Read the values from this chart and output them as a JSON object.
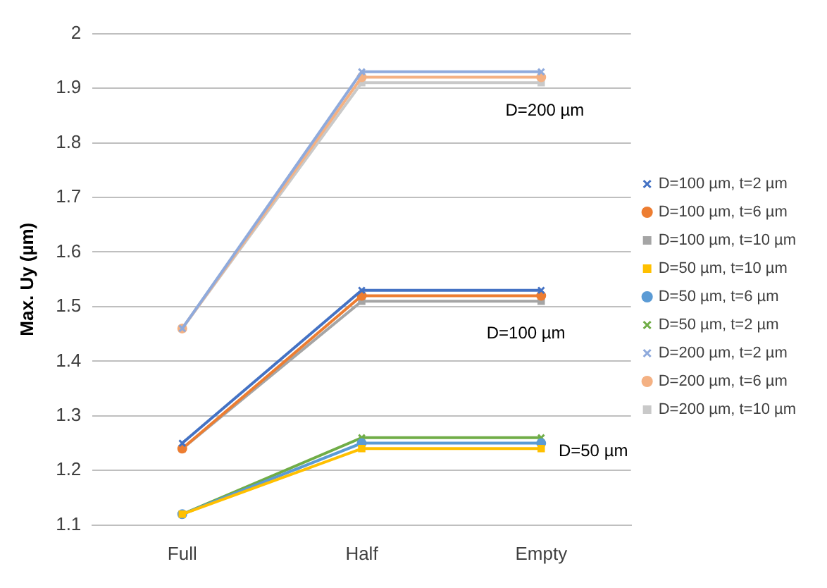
{
  "chart_data": {
    "type": "line",
    "ylabel": "Max. Uy (µm)",
    "categories": [
      "Full",
      "Half",
      "Empty"
    ],
    "ylim": [
      1.1,
      2
    ],
    "yticks": [
      1.1,
      1.2,
      1.3,
      1.4,
      1.5,
      1.6,
      1.7,
      1.8,
      1.9,
      2
    ],
    "grid": "y",
    "legend": "right",
    "line_style": "solid",
    "series": [
      {
        "name": "D=100 µm, t=2 µm",
        "color": "#4472c4",
        "marker": "cross",
        "values": [
          1.25,
          1.53,
          1.53
        ]
      },
      {
        "name": "D=100 µm, t=6 µm",
        "color": "#ed7d31",
        "marker": "circle",
        "values": [
          1.24,
          1.52,
          1.52
        ]
      },
      {
        "name": "D=100 µm, t=10 µm",
        "color": "#a5a5a5",
        "marker": "square",
        "values": [
          1.24,
          1.51,
          1.51
        ]
      },
      {
        "name": "D=50 µm, t=10 µm",
        "color": "#ffc000",
        "marker": "square",
        "values": [
          1.12,
          1.24,
          1.24
        ]
      },
      {
        "name": "D=50 µm, t=6 µm",
        "color": "#5b9bd5",
        "marker": "circle",
        "values": [
          1.12,
          1.25,
          1.25
        ]
      },
      {
        "name": "D=50 µm, t=2 µm",
        "color": "#70ad47",
        "marker": "cross",
        "values": [
          1.12,
          1.26,
          1.26
        ]
      },
      {
        "name": "D=200 µm, t=2 µm",
        "color": "#8faadc",
        "marker": "cross",
        "values": [
          1.46,
          1.93,
          1.93
        ]
      },
      {
        "name": "D=200 µm, t=6 µm",
        "color": "#f4b183",
        "marker": "circle",
        "values": [
          1.46,
          1.92,
          1.92
        ]
      },
      {
        "name": "D=200 µm, t=10 µm",
        "color": "#c9c9c9",
        "marker": "square",
        "values": [
          1.46,
          1.91,
          1.91
        ]
      }
    ],
    "annotations": [
      "D=200 µm",
      "D=100 µm",
      "D=50 µm"
    ]
  }
}
